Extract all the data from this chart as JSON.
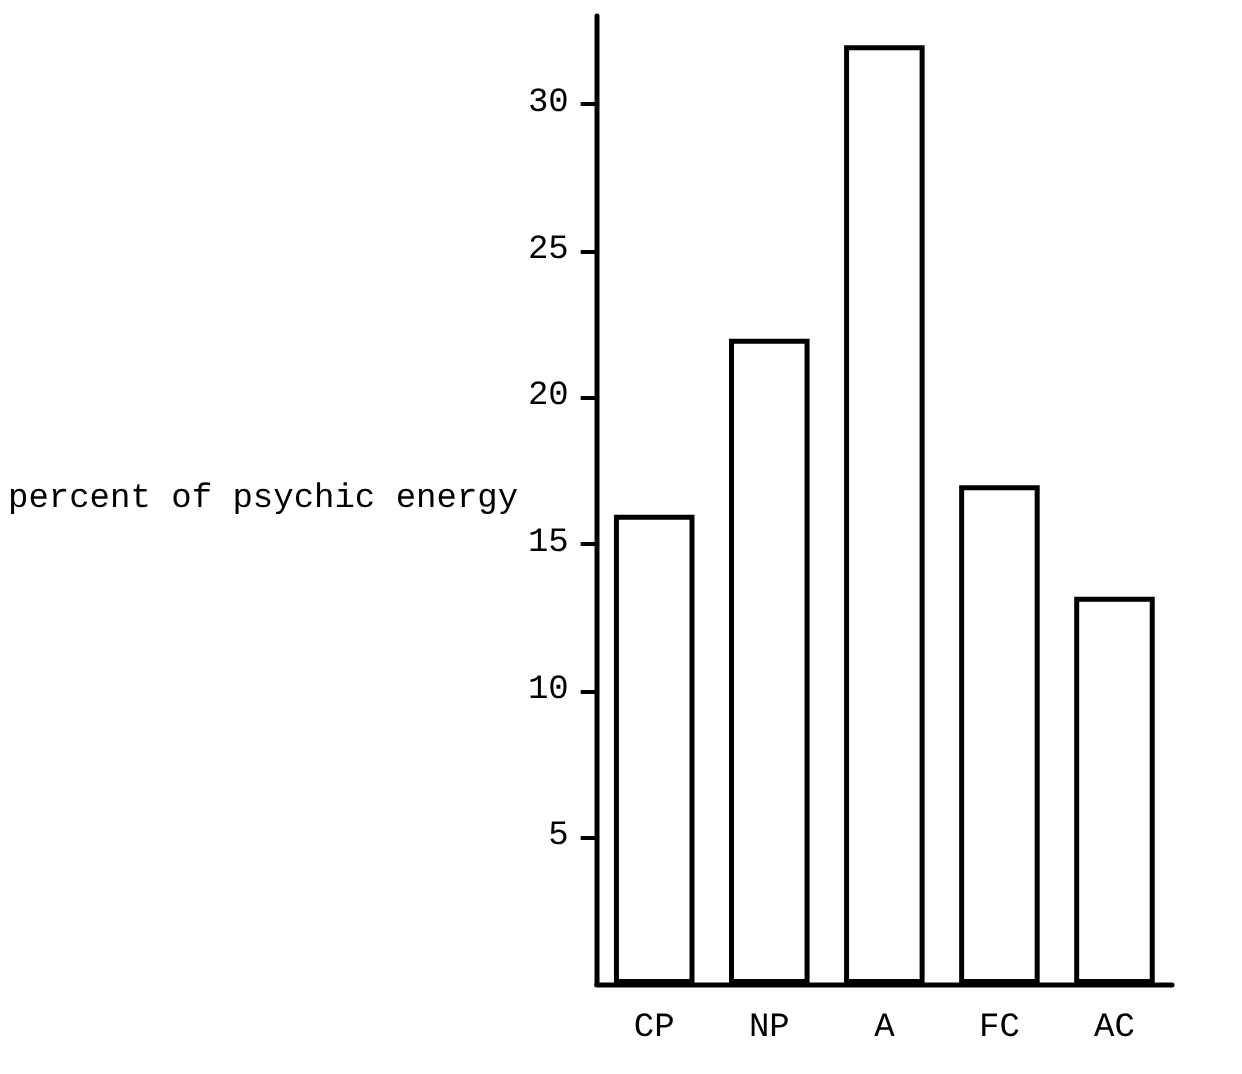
{
  "chart_data": {
    "type": "bar",
    "ylabel": "percent of psychic energy",
    "categories": [
      "CP",
      "NP",
      "A",
      "FC",
      "AC"
    ],
    "values": [
      16,
      22,
      32,
      17,
      13.2
    ],
    "color": "#ffffff",
    "ylim": [
      0,
      33
    ],
    "yticks": [
      5,
      10,
      15,
      20,
      25,
      30
    ],
    "grid": false
  }
}
